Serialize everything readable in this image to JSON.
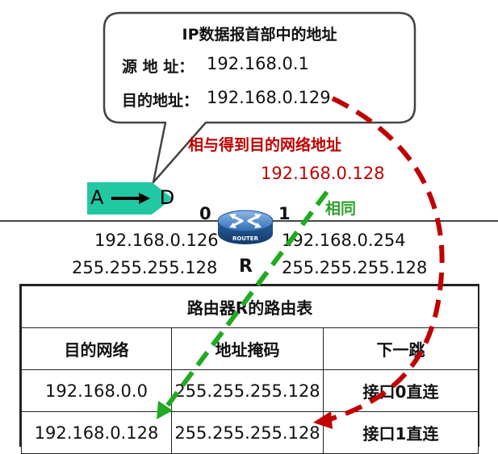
{
  "callout": {
    "title": "IP数据报首部中的地址",
    "src_label": "源 地 址：",
    "src_value": "192.168.0.1",
    "dst_label": "目的地址：",
    "dst_value": "192.168.0.129"
  },
  "and_operation": {
    "label": "相与得到目的网络地址",
    "result": "192.168.0.128",
    "match_label": "相同"
  },
  "host": {
    "src": "A",
    "dst": "D"
  },
  "router": {
    "name": "R",
    "icon_text": "ROUTER",
    "port0": {
      "number": "0",
      "ip": "192.168.0.126",
      "mask": "255.255.255.128"
    },
    "port1": {
      "number": "1",
      "ip": "192.168.0.254",
      "mask": "255.255.255.128"
    }
  },
  "routing_table": {
    "title": "路由器R的路由表",
    "headers": [
      "目的网络",
      "地址掩码",
      "下一跳"
    ],
    "rows": [
      [
        "192.168.0.0",
        "255.255.255.128",
        "接口0直连"
      ],
      [
        "192.168.0.128",
        "255.255.255.128",
        "接口1直连"
      ]
    ]
  },
  "colors": {
    "host": "#22c7a4",
    "router": "#2e75b6",
    "red_dash": "#c00000",
    "green_dash": "#22aa22"
  }
}
